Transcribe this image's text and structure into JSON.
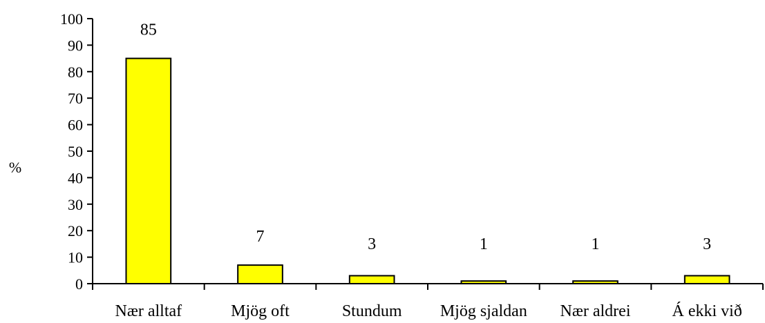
{
  "chart_data": {
    "type": "bar",
    "categories": [
      "Nær alltaf",
      "Mjög oft",
      "Stundum",
      "Mjög sjaldan",
      "Nær aldrei",
      "Á ekki við"
    ],
    "values": [
      85,
      7,
      3,
      1,
      1,
      3
    ],
    "data_labels": [
      "85",
      "7",
      "3",
      "1",
      "1",
      "3"
    ],
    "title": "",
    "xlabel": "",
    "ylabel": "%",
    "ylim": [
      0,
      100
    ],
    "yticks": [
      0,
      10,
      20,
      30,
      40,
      50,
      60,
      70,
      80,
      90,
      100
    ],
    "grid": false,
    "legend": "none",
    "bar_color": "#ffff00",
    "bar_stroke": "#000000"
  }
}
